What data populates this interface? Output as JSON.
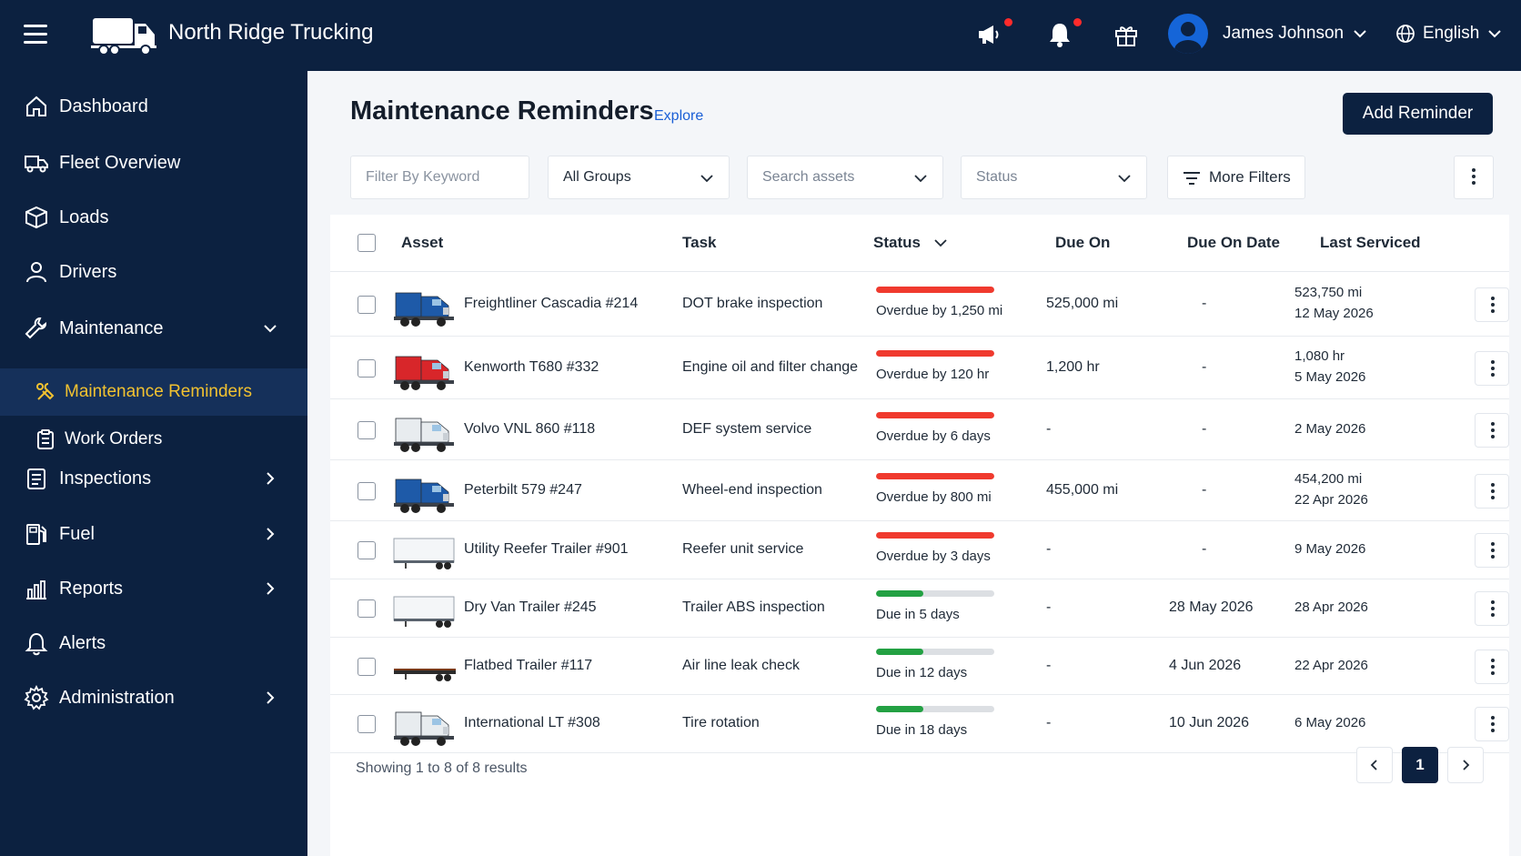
{
  "app": {
    "company": "North Ridge Trucking",
    "user_name": "James Johnson",
    "language": "English"
  },
  "sidebar": {
    "items": [
      {
        "label": "Dashboard",
        "icon": "home-icon"
      },
      {
        "label": "Fleet Overview",
        "icon": "truck-icon"
      },
      {
        "label": "Loads",
        "icon": "box-icon"
      },
      {
        "label": "Drivers",
        "icon": "user-icon"
      },
      {
        "label": "Maintenance",
        "icon": "wrench-icon",
        "expanded": true,
        "children": [
          {
            "label": "Maintenance Reminders",
            "icon": "tools-icon",
            "active": true
          },
          {
            "label": "Work Orders",
            "icon": "clipboard-icon"
          }
        ]
      },
      {
        "label": "Inspections",
        "icon": "checklist-icon"
      },
      {
        "label": "Fuel",
        "icon": "fuel-pump-icon"
      },
      {
        "label": "Reports",
        "icon": "bar-chart-icon"
      },
      {
        "label": "Alerts",
        "icon": "bell-icon"
      },
      {
        "label": "Administration",
        "icon": "gear-icon"
      }
    ]
  },
  "page": {
    "title": "Maintenance Reminders",
    "explore": "Explore",
    "add_button": "Add Reminder"
  },
  "filters": {
    "keyword_placeholder": "Filter By Keyword",
    "groups": "All Groups",
    "assets_placeholder": "Search assets",
    "status_placeholder": "Status",
    "more": "More Filters"
  },
  "table": {
    "headers": {
      "asset": "Asset",
      "task": "Task",
      "status": "Status",
      "due_on": "Due On",
      "due_on_date": "Due On Date",
      "last_serviced": "Last Serviced"
    },
    "rows": [
      {
        "asset": "Freightliner Cascadia #214",
        "thumb": "truck-blue",
        "task": "DOT brake inspection",
        "status": "Overdue by 1,250 mi",
        "status_type": "overdue",
        "progress": 1.0,
        "due_on": "525,000 mi",
        "due_date": "-",
        "last1": "523,750 mi",
        "last2": "12 May 2026"
      },
      {
        "asset": "Kenworth T680 #332",
        "thumb": "truck-red",
        "task": "Engine oil and filter change",
        "status": "Overdue by 120 hr",
        "status_type": "overdue",
        "progress": 1.0,
        "due_on": "1,200 hr",
        "due_date": "-",
        "last1": "1,080 hr",
        "last2": "5 May 2026"
      },
      {
        "asset": "Volvo VNL 860 #118",
        "thumb": "truck-white",
        "task": "DEF system service",
        "status": "Overdue by 6 days",
        "status_type": "overdue",
        "progress": 1.0,
        "due_on": "-",
        "due_date": "-",
        "last1": "2 May 2026",
        "last2": ""
      },
      {
        "asset": "Peterbilt 579 #247",
        "thumb": "truck-blue",
        "task": "Wheel-end inspection",
        "status": "Overdue by 800 mi",
        "status_type": "overdue",
        "progress": 1.0,
        "due_on": "455,000 mi",
        "due_date": "-",
        "last1": "454,200 mi",
        "last2": "22 Apr 2026"
      },
      {
        "asset": "Utility Reefer Trailer #901",
        "thumb": "trailer",
        "task": "Reefer unit service",
        "status": "Overdue by 3 days",
        "status_type": "overdue",
        "progress": 1.0,
        "due_on": "-",
        "due_date": "-",
        "last1": "9 May 2026",
        "last2": ""
      },
      {
        "asset": "Dry Van Trailer #245",
        "thumb": "trailer",
        "task": "Trailer ABS inspection",
        "status": "Due in 5 days",
        "status_type": "due",
        "progress": 0.4,
        "due_on": "-",
        "due_date": "28 May 2026",
        "last1": "28 Apr 2026",
        "last2": ""
      },
      {
        "asset": "Flatbed Trailer #117",
        "thumb": "flatbed",
        "task": "Air line leak check",
        "status": "Due in 12 days",
        "status_type": "due",
        "progress": 0.4,
        "due_on": "-",
        "due_date": "4 Jun 2026",
        "last1": "22 Apr 2026",
        "last2": ""
      },
      {
        "asset": "International LT #308",
        "thumb": "truck-white",
        "task": "Tire rotation",
        "status": "Due in 18 days",
        "status_type": "due",
        "progress": 0.4,
        "due_on": "-",
        "due_date": "10 Jun 2026",
        "last1": "6 May 2026",
        "last2": ""
      }
    ]
  },
  "pagination": {
    "showing": "Showing 1 to 8 of 8 results",
    "current_page": "1"
  },
  "colors": {
    "navy": "#0c2140",
    "accent_yellow": "#f2c230",
    "overdue_red": "#f03a2e",
    "due_green": "#23a143",
    "link_blue": "#1a5fd6"
  }
}
